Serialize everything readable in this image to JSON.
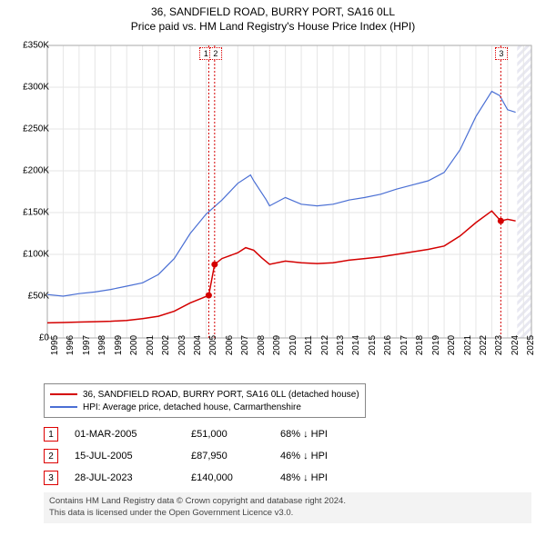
{
  "title_line1": "36, SANDFIELD ROAD, BURRY PORT, SA16 0LL",
  "title_line2": "Price paid vs. HM Land Registry's House Price Index (HPI)",
  "chart": {
    "type": "line",
    "background_color": "#ffffff",
    "grid_color": "#e6e6e6",
    "axis_color": "#aaaaaa",
    "x_years": [
      1995,
      1996,
      1997,
      1998,
      1999,
      2000,
      2001,
      2002,
      2003,
      2004,
      2005,
      2006,
      2007,
      2008,
      2009,
      2010,
      2011,
      2012,
      2013,
      2014,
      2015,
      2016,
      2017,
      2018,
      2019,
      2020,
      2021,
      2022,
      2023,
      2024,
      2025
    ],
    "y_ticks": [
      0,
      50000,
      100000,
      150000,
      200000,
      250000,
      300000,
      350000
    ],
    "y_tick_labels": [
      "£0",
      "£50K",
      "£100K",
      "£150K",
      "£200K",
      "£250K",
      "£300K",
      "£350K"
    ],
    "ylim": [
      0,
      350000
    ],
    "xlim": [
      1995,
      2025.5
    ],
    "series": [
      {
        "name": "property",
        "label": "36, SANDFIELD ROAD, BURRY PORT, SA16 0LL (detached house)",
        "color": "#d40000",
        "line_width": 1.5,
        "points": [
          [
            1995,
            18000
          ],
          [
            1996,
            18500
          ],
          [
            1997,
            19000
          ],
          [
            1998,
            19500
          ],
          [
            1999,
            20000
          ],
          [
            2000,
            21000
          ],
          [
            2001,
            23000
          ],
          [
            2002,
            26000
          ],
          [
            2003,
            32000
          ],
          [
            2004,
            42000
          ],
          [
            2004.8,
            48000
          ],
          [
            2005.17,
            51000
          ],
          [
            2005.54,
            87950
          ],
          [
            2006,
            95000
          ],
          [
            2007,
            102000
          ],
          [
            2007.5,
            108000
          ],
          [
            2008,
            105000
          ],
          [
            2008.5,
            96000
          ],
          [
            2009,
            88000
          ],
          [
            2010,
            92000
          ],
          [
            2011,
            90000
          ],
          [
            2012,
            89000
          ],
          [
            2013,
            90000
          ],
          [
            2014,
            93000
          ],
          [
            2015,
            95000
          ],
          [
            2016,
            97000
          ],
          [
            2017,
            100000
          ],
          [
            2018,
            103000
          ],
          [
            2019,
            106000
          ],
          [
            2020,
            110000
          ],
          [
            2021,
            122000
          ],
          [
            2022,
            138000
          ],
          [
            2023,
            152000
          ],
          [
            2023.57,
            140000
          ],
          [
            2024,
            142000
          ],
          [
            2024.5,
            140000
          ]
        ],
        "markers": [
          {
            "num": "1",
            "x": 2005.17,
            "y": 51000,
            "label_x": 2005.0,
            "label_y": 348000
          },
          {
            "num": "2",
            "x": 2005.54,
            "y": 87950,
            "label_x": 2005.6,
            "label_y": 348000
          },
          {
            "num": "3",
            "x": 2023.57,
            "y": 140000,
            "label_x": 2023.6,
            "label_y": 348000
          }
        ]
      },
      {
        "name": "hpi",
        "label": "HPI: Average price, detached house, Carmarthenshire",
        "color": "#4a6fd4",
        "line_width": 1.2,
        "points": [
          [
            1995,
            52000
          ],
          [
            1996,
            50000
          ],
          [
            1997,
            53000
          ],
          [
            1998,
            55000
          ],
          [
            1999,
            58000
          ],
          [
            2000,
            62000
          ],
          [
            2001,
            66000
          ],
          [
            2002,
            76000
          ],
          [
            2003,
            95000
          ],
          [
            2004,
            125000
          ],
          [
            2005,
            148000
          ],
          [
            2006,
            165000
          ],
          [
            2007,
            185000
          ],
          [
            2007.8,
            195000
          ],
          [
            2008,
            188000
          ],
          [
            2008.8,
            165000
          ],
          [
            2009,
            158000
          ],
          [
            2010,
            168000
          ],
          [
            2011,
            160000
          ],
          [
            2012,
            158000
          ],
          [
            2013,
            160000
          ],
          [
            2014,
            165000
          ],
          [
            2015,
            168000
          ],
          [
            2016,
            172000
          ],
          [
            2017,
            178000
          ],
          [
            2018,
            183000
          ],
          [
            2019,
            188000
          ],
          [
            2020,
            198000
          ],
          [
            2021,
            225000
          ],
          [
            2022,
            265000
          ],
          [
            2023,
            295000
          ],
          [
            2023.5,
            290000
          ],
          [
            2024,
            273000
          ],
          [
            2024.5,
            270000
          ]
        ]
      }
    ],
    "future_hatch": {
      "x_start": 2024.6,
      "x_end": 2025.5,
      "color": "#d8d8e8"
    },
    "label_fontsize": 10
  },
  "legend": {
    "items": [
      {
        "color": "#d40000",
        "text": "36, SANDFIELD ROAD, BURRY PORT, SA16 0LL (detached house)"
      },
      {
        "color": "#4a6fd4",
        "text": "HPI: Average price, detached house, Carmarthenshire"
      }
    ]
  },
  "callouts": [
    {
      "num": "1",
      "date": "01-MAR-2005",
      "price": "£51,000",
      "hpi": "68% ↓ HPI"
    },
    {
      "num": "2",
      "date": "15-JUL-2005",
      "price": "£87,950",
      "hpi": "46% ↓ HPI"
    },
    {
      "num": "3",
      "date": "28-JUL-2023",
      "price": "£140,000",
      "hpi": "48% ↓ HPI"
    }
  ],
  "footer": {
    "line1": "Contains HM Land Registry data © Crown copyright and database right 2024.",
    "line2": "This data is licensed under the Open Government Licence v3.0."
  },
  "colors": {
    "callout_border": "#d40000",
    "footer_bg": "#f3f3f3",
    "footer_text": "#444444"
  }
}
